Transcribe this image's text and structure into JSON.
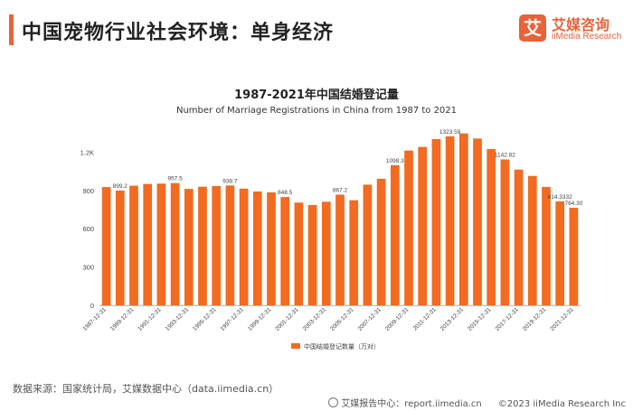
{
  "header": {
    "title": "中国宠物行业社会环境：单身经济"
  },
  "logo": {
    "glyph": "艾",
    "cn": "艾媒咨询",
    "en": "iiMedia Research",
    "color": "#e8623a"
  },
  "chart_data": {
    "type": "bar",
    "title": "1987-2021年中国结婚登记量",
    "subtitle": "Number of Marriage Registrations in China from 1987 to 2021",
    "legend": "中国结婚登记数量（万对）",
    "legend_position": "bottom",
    "bar_color": "#f26b21",
    "categories": [
      "1987-12-31",
      "1988-12-31",
      "1989-12-31",
      "1990-12-31",
      "1991-12-31",
      "1992-12-31",
      "1993-12-31",
      "1994-12-31",
      "1995-12-31",
      "1996-12-31",
      "1997-12-31",
      "1998-12-31",
      "1999-12-31",
      "2000-12-31",
      "2001-12-31",
      "2002-12-31",
      "2003-12-31",
      "2004-12-31",
      "2005-12-31",
      "2006-12-31",
      "2007-12-31",
      "2008-12-31",
      "2009-12-31",
      "2010-12-31",
      "2011-12-31",
      "2012-12-31",
      "2013-12-31",
      "2014-12-31",
      "2015-12-31",
      "2016-12-31",
      "2017-12-31",
      "2018-12-31",
      "2019-12-31",
      "2020-12-31",
      "2021-12-31"
    ],
    "tick_labels": [
      "1987-12-31",
      "1989-12-31",
      "1991-12-31",
      "1993-12-31",
      "1995-12-31",
      "1997-12-31",
      "1999-12-31",
      "2001-12-31",
      "2003-12-31",
      "2005-12-31",
      "2007-12-31",
      "2009-12-31",
      "2011-12-31",
      "2013-12-31",
      "2015-12-31",
      "2017-12-31",
      "2019-12-31",
      "2021-12-31"
    ],
    "values": [
      926.5,
      899.2,
      937.2,
      951.1,
      953.6,
      957.5,
      912.2,
      929.3,
      934.1,
      938.7,
      914.1,
      891.7,
      885.3,
      848.5,
      805.0,
      786.0,
      811.4,
      867.2,
      823.1,
      945.0,
      991.4,
      1098.3,
      1212.4,
      1241.0,
      1302.4,
      1323.59,
      1346.9,
      1306.7,
      1224.7,
      1142.82,
      1063.1,
      1013.9,
      927.3,
      814.3332,
      764.3
    ],
    "data_labels": {
      "1": "899.2",
      "5": "957.5",
      "9": "938.7",
      "13": "848.5",
      "17": "867.2",
      "21": "1098.3",
      "25": "1323.59",
      "29": "1142.82",
      "33": "814.3332",
      "34": "764.30"
    },
    "y_ticks": [
      0,
      300,
      600,
      900,
      1200
    ],
    "y_tick_labels": [
      "0",
      "300",
      "600",
      "900",
      "1.2K"
    ],
    "ylim": [
      0,
      1380
    ],
    "grid": false
  },
  "source": {
    "text": "数据来源：国家统计局，艾媒数据中心（data.iimedia.cn）"
  },
  "footer": {
    "report": "艾媒报告中心：report.iimedia.cn",
    "copyright": "©2023  iiMedia Research  Inc"
  }
}
